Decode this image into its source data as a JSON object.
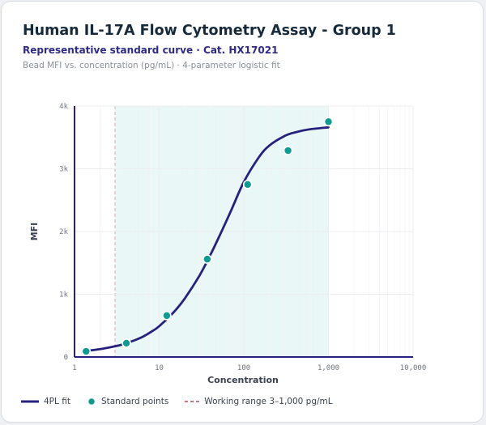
{
  "header": {
    "title": "Human IL-17A Flow Cytometry Assay - Group 1",
    "subtitle": "Representative standard curve · Cat. HX17021",
    "caption": "Bead MFI vs. concentration (pg/mL) · 4-parameter logistic fit"
  },
  "colors": {
    "fit_line": "#27217e",
    "points": "#0f9a94",
    "working_range_line": "#b64b5b",
    "working_range_fill": "#eaf7f7",
    "grid": "#edeef1",
    "axis": "#27217e"
  },
  "legend": {
    "fit_label": "4PL fit",
    "points_label": "Standard points",
    "range_label": "Working range 3–1,000 pg/mL"
  },
  "chart_data": {
    "type": "scatter",
    "title": "Human IL-17A Flow Cytometry Assay - Group 1",
    "subtitle": "Representative standard curve · Cat. HX17021",
    "xlabel": "Concentration",
    "ylabel": "MFI",
    "x_scale": "log",
    "xlim": [
      1,
      10000
    ],
    "ylim": [
      0,
      4000
    ],
    "x_ticks": [
      1,
      10,
      100,
      1000,
      10000
    ],
    "x_tick_labels": [
      "1",
      "10",
      "100",
      "1,000",
      "10,000"
    ],
    "y_ticks": [
      0,
      1000,
      2000,
      3000,
      4000
    ],
    "y_tick_labels": [
      "0",
      "1k",
      "2k",
      "3k",
      "4k"
    ],
    "grid": true,
    "legend_position": "bottom",
    "working_range": [
      3,
      1000
    ],
    "series": [
      {
        "name": "Standard points",
        "type": "scatter",
        "x": [
          1.37,
          4.1,
          12.3,
          37,
          111,
          333,
          1000
        ],
        "y": [
          90,
          220,
          660,
          1560,
          2750,
          3290,
          3750
        ]
      },
      {
        "name": "4PL fit",
        "type": "line",
        "x": [
          1.3,
          2,
          3,
          4,
          6,
          8,
          10,
          15,
          20,
          30,
          40,
          50,
          70,
          100,
          150,
          200,
          300,
          400,
          600,
          1000
        ],
        "y": [
          95,
          125,
          170,
          215,
          305,
          400,
          490,
          720,
          930,
          1300,
          1620,
          1890,
          2320,
          2790,
          3180,
          3370,
          3520,
          3580,
          3630,
          3660
        ]
      }
    ]
  }
}
